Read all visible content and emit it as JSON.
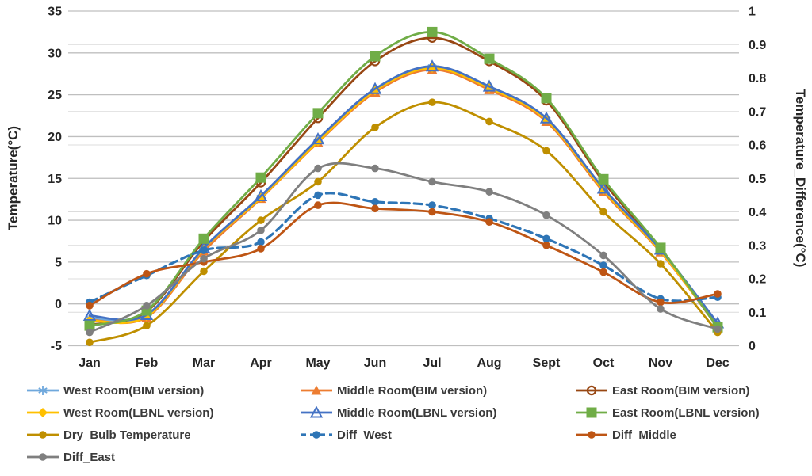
{
  "chart_data": {
    "type": "line",
    "categories": [
      "Jan",
      "Feb",
      "Mar",
      "Apr",
      "May",
      "Jun",
      "Jul",
      "Aug",
      "Sept",
      "Oct",
      "Nov",
      "Dec"
    ],
    "left_axis": {
      "label": "Temperature(°C)",
      "min": -5,
      "max": 35,
      "tick_step": 5,
      "ticks": [
        "35",
        "30",
        "25",
        "20",
        "15",
        "10",
        "5",
        "0",
        "-5"
      ]
    },
    "right_axis": {
      "label": "Temperature_Difference(°C)",
      "min": 0,
      "max": 1,
      "tick_step": 0.1,
      "ticks": [
        "1",
        "0.9",
        "0.8",
        "0.7",
        "0.6",
        "0.5",
        "0.4",
        "0.3",
        "0.2",
        "0.1",
        "0"
      ]
    },
    "grid": {
      "major_color": "#BFBFBF",
      "minor_color": "#DCDCDC",
      "on": true
    },
    "legend_position": "bottom",
    "series": [
      {
        "name": "West Room(BIM version)",
        "axis": "left",
        "color": "#6FA8DC",
        "marker": "star",
        "line": "solid",
        "values": [
          -1.7,
          -1.4,
          6.4,
          12.7,
          19.4,
          25.4,
          28.3,
          25.8,
          22.0,
          13.6,
          6.4,
          -2.6
        ]
      },
      {
        "name": "Middle Room(BIM version)",
        "axis": "left",
        "color": "#ED7D31",
        "marker": "triangle",
        "line": "solid",
        "values": [
          -1.9,
          -1.6,
          6.3,
          12.6,
          19.3,
          25.3,
          28.0,
          25.6,
          21.8,
          13.4,
          6.2,
          -2.7
        ]
      },
      {
        "name": "East Room(BIM version)",
        "axis": "left",
        "color": "#984713",
        "marker": "circle-open",
        "line": "solid",
        "values": [
          -2.5,
          -0.9,
          7.5,
          14.5,
          22.2,
          29.0,
          31.8,
          29.0,
          24.3,
          14.6,
          6.5,
          -2.8
        ]
      },
      {
        "name": "West Room(LBNL version)",
        "axis": "left",
        "color": "#FFC000",
        "marker": "diamond",
        "line": "solid",
        "values": [
          -2.0,
          -1.5,
          6.6,
          12.7,
          19.4,
          25.5,
          28.2,
          25.8,
          22.0,
          13.6,
          6.3,
          -2.7
        ]
      },
      {
        "name": "Middle Room(LBNL version)",
        "axis": "left",
        "color": "#4472C4",
        "marker": "triangle-open",
        "line": "solid",
        "values": [
          -1.4,
          -1.3,
          6.7,
          12.9,
          19.7,
          25.7,
          28.4,
          26.0,
          22.2,
          13.8,
          6.5,
          -2.3
        ]
      },
      {
        "name": "East Room(LBNL version)",
        "axis": "left",
        "color": "#70AD47",
        "marker": "square",
        "line": "solid",
        "values": [
          -2.6,
          -0.8,
          7.8,
          15.1,
          22.8,
          29.6,
          32.5,
          29.3,
          24.6,
          14.9,
          6.7,
          -2.8
        ]
      },
      {
        "name": "Dry  Bulb Temperature",
        "axis": "left",
        "color": "#BF8F00",
        "marker": "circle",
        "line": "solid",
        "values": [
          -4.6,
          -2.6,
          3.9,
          10.0,
          14.6,
          21.1,
          24.1,
          21.8,
          18.3,
          11.0,
          4.8,
          -3.4
        ]
      },
      {
        "name": "Diff_West",
        "axis": "right",
        "color": "#2E75B6",
        "marker": "circle",
        "line": "dashed",
        "values": [
          0.13,
          0.21,
          0.285,
          0.31,
          0.45,
          0.43,
          0.42,
          0.38,
          0.32,
          0.24,
          0.14,
          0.145
        ]
      },
      {
        "name": "Diff_Middle",
        "axis": "right",
        "color": "#BE5514",
        "marker": "circle",
        "line": "solid",
        "values": [
          0.12,
          0.215,
          0.25,
          0.29,
          0.42,
          0.41,
          0.4,
          0.37,
          0.3,
          0.22,
          0.13,
          0.155
        ]
      },
      {
        "name": "Diff_East",
        "axis": "right",
        "color": "#7F7F7F",
        "marker": "circle",
        "line": "solid",
        "values": [
          0.04,
          0.12,
          0.26,
          0.345,
          0.53,
          0.53,
          0.49,
          0.46,
          0.39,
          0.27,
          0.11,
          0.05
        ]
      }
    ]
  }
}
